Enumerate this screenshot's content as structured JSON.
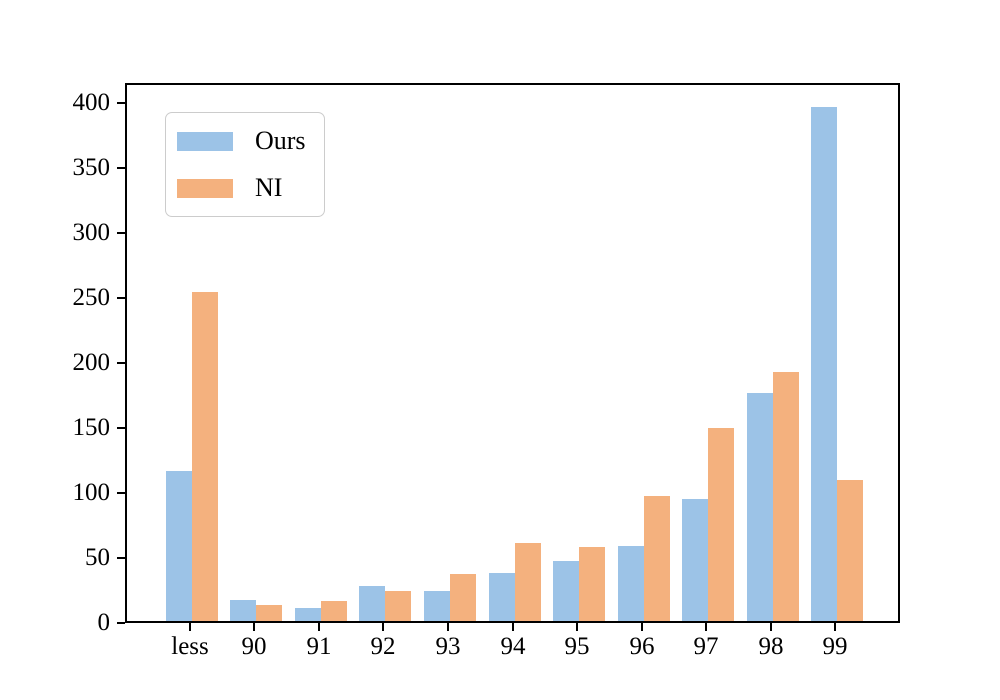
{
  "figure": {
    "background": "#ffffff",
    "axes_border_color": "#000000"
  },
  "legend": {
    "position": "upper-left",
    "entries": [
      "Ours",
      "NI"
    ]
  },
  "chart_data": {
    "type": "bar",
    "title": "",
    "xlabel": "",
    "ylabel": "",
    "categories": [
      "less",
      "90",
      "91",
      "92",
      "93",
      "94",
      "95",
      "96",
      "97",
      "98",
      "99"
    ],
    "series": [
      {
        "name": "Ours",
        "color": "#9CC3E7",
        "values": [
          115,
          16,
          10,
          27,
          23,
          37,
          46,
          58,
          94,
          175,
          395
        ]
      },
      {
        "name": "NI",
        "color": "#F4B17E",
        "values": [
          253,
          12,
          15,
          23,
          36,
          60,
          57,
          96,
          148,
          191,
          108
        ]
      }
    ],
    "yticks": [
      0,
      50,
      100,
      150,
      200,
      250,
      300,
      350,
      400
    ],
    "ylim": [
      0,
      415
    ],
    "grid": false,
    "legend_position": "upper-left",
    "bar_group": "paired-touching"
  }
}
